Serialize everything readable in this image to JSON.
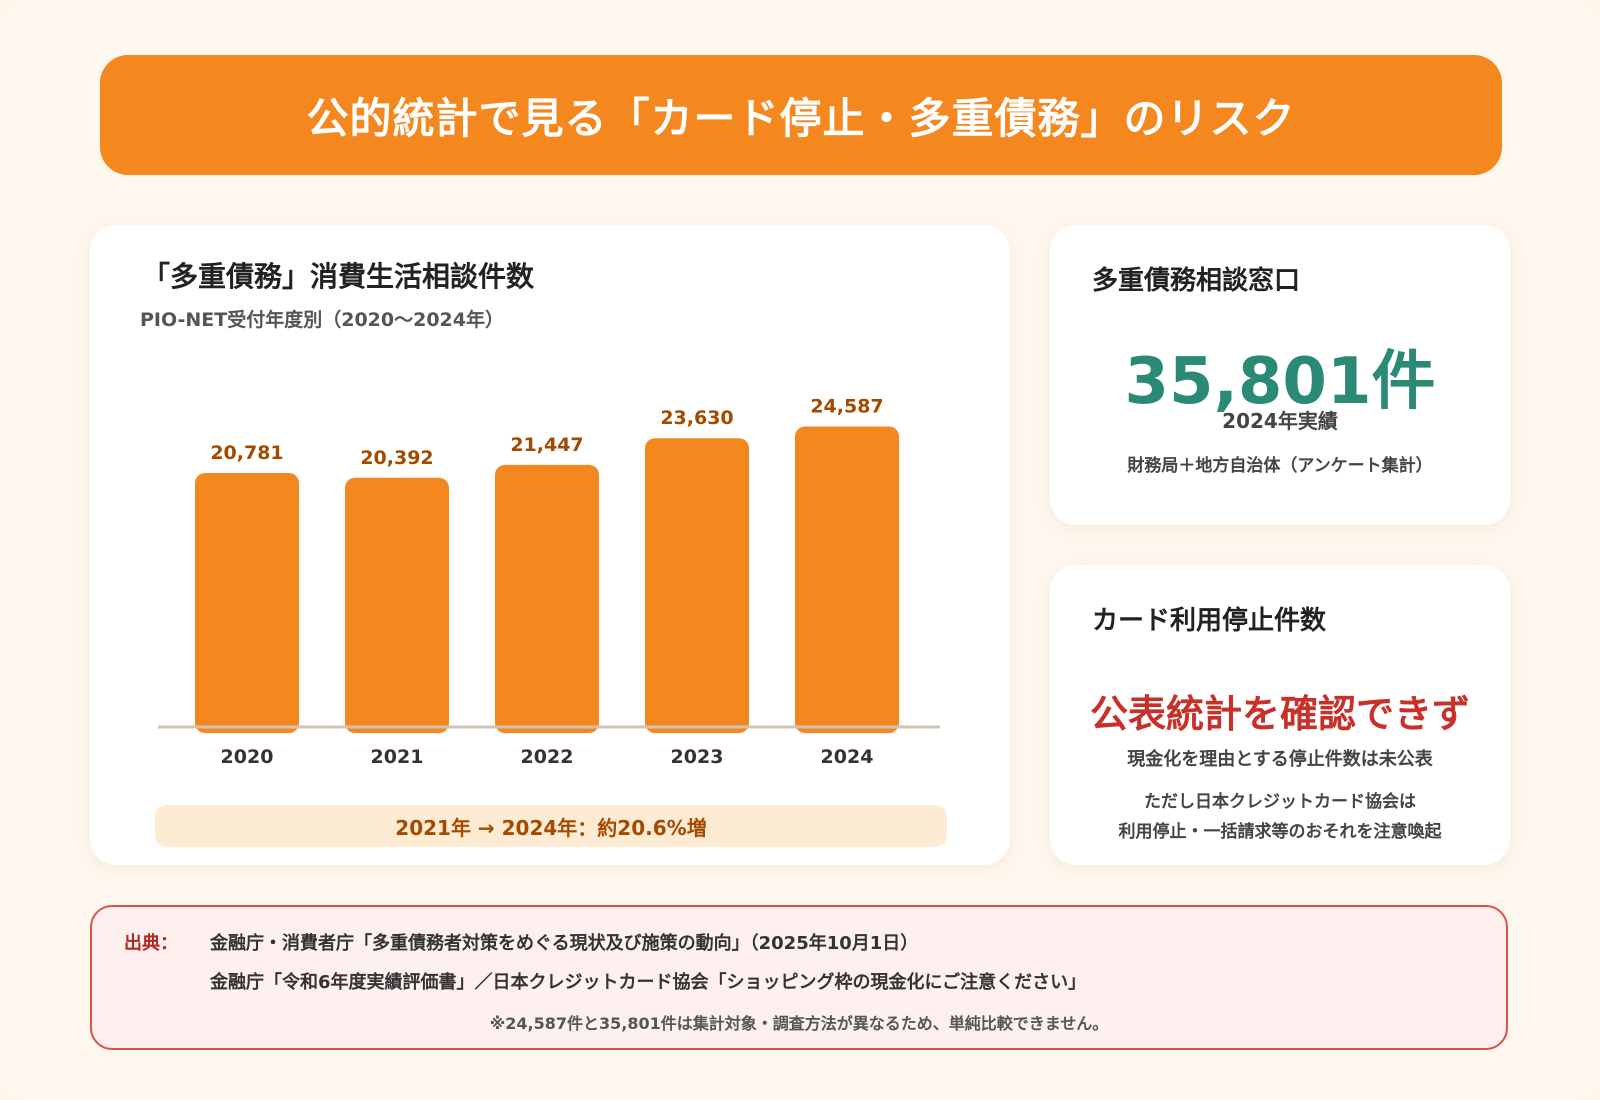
{
  "banner": {
    "title": "公的統計で見る「カード停止・多重債務」のリスク"
  },
  "chart_card": {
    "title": "「多重債務」消費生活相談件数",
    "subtitle": "PIO-NET受付年度別（2020〜2024年）",
    "growth_note": "2021年 → 2024年：約20.6%増"
  },
  "chart_data": {
    "type": "bar",
    "categories": [
      "2020",
      "2021",
      "2022",
      "2023",
      "2024"
    ],
    "values": [
      20781,
      20392,
      21447,
      23630,
      24587
    ],
    "value_labels": [
      "20,781",
      "20,392",
      "21,447",
      "23,630",
      "24,587"
    ],
    "title": "「多重債務」消費生活相談件数",
    "subtitle": "PIO-NET受付年度別（2020〜2024年）",
    "xlabel": "",
    "ylabel": "",
    "ylim": [
      0,
      27000
    ],
    "grid": false,
    "legend": "none",
    "colors": {
      "bar": "#f5871f",
      "value_label": "#a44a00",
      "axis": "#cfc3b6"
    }
  },
  "stat_card": {
    "heading": "多重債務相談窓口",
    "value": "35,801件",
    "year_note": "2024年実績",
    "source_note": "財務局＋地方自治体（アンケート集計）"
  },
  "stop_card": {
    "heading": "カード利用停止件数",
    "headline": "公表統計を確認できず",
    "line1": "現金化を理由とする停止件数は未公表",
    "line2": "ただし日本クレジットカード協会は",
    "line3": "利用停止・一括請求等のおそれを注意喚起"
  },
  "sources": {
    "label": "出典：",
    "line1": "金融庁・消費者庁「多重債務者対策をめぐる現状及び施策の動向」（2025年10月1日）",
    "line2": "金融庁「令和6年度実績評価書」／日本クレジットカード協会「ショッピング枠の現金化にご注意ください」",
    "note": "※24,587件と35,801件は集計対象・調査方法が異なるため、単純比較できません。"
  },
  "colors": {
    "banner": "#f5871f",
    "accent_green": "#2a8a76",
    "accent_red": "#c8302a",
    "background": "#fef7ee"
  }
}
